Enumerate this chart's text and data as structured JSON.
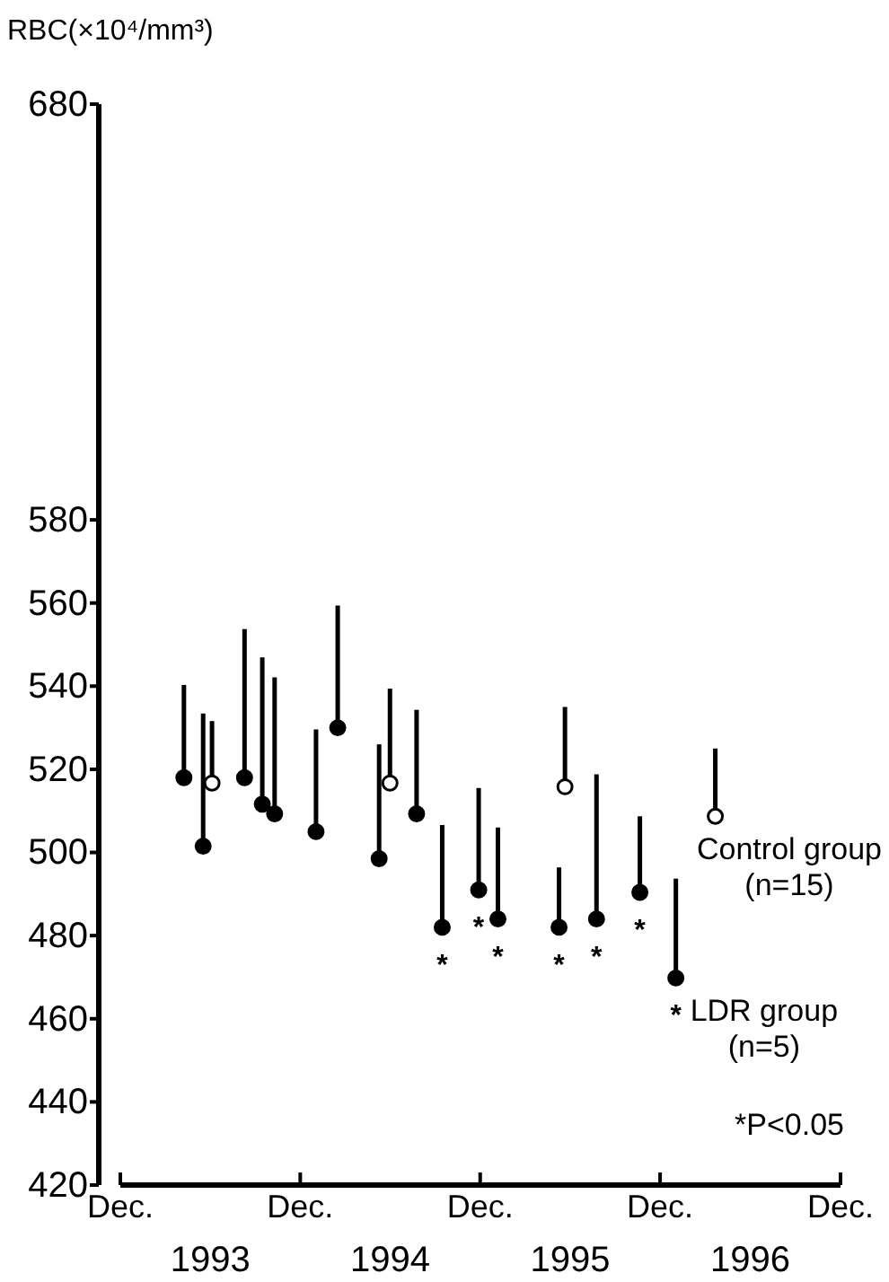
{
  "chart_data": {
    "type": "scatter",
    "ylabel": "RBC(×10⁴/mm³)",
    "xlim": [
      "1992-12-01",
      "1996-12-01"
    ],
    "xticks": [
      {
        "value": "1992-12-01",
        "label": "Dec."
      },
      {
        "value": "1993-12-01",
        "label": "Dec."
      },
      {
        "value": "1994-12-01",
        "label": "Dec."
      },
      {
        "value": "1995-12-01",
        "label": "Dec."
      },
      {
        "value": "1996-12-01",
        "label": "Dec."
      }
    ],
    "ylim": [
      420,
      680
    ],
    "yticks": [
      420,
      440,
      460,
      480,
      500,
      520,
      540,
      560,
      580,
      680
    ],
    "grid": false,
    "legend": false,
    "marker": "circle",
    "series": [
      {
        "name": "LDR group (n=5)",
        "color": "#000000",
        "x": [
          "1993-04-09",
          "1993-05-18",
          "1993-08-10",
          "1993-09-15",
          "1993-10-10",
          "1994-01-02",
          "1994-02-15",
          "1994-05-10",
          "1994-07-25",
          "1994-09-15",
          "1994-11-28",
          "1995-01-06",
          "1995-05-10",
          "1995-07-25",
          "1995-10-21",
          "1996-01-02"
        ],
        "values": [
          518,
          501.5,
          518,
          511.6,
          509.3,
          505,
          530,
          498.5,
          509.3,
          482,
          491,
          484,
          482,
          484,
          490.4,
          469.8
        ],
        "errors": [
          [
            518,
            540.3
          ],
          [
            501.5,
            533.4
          ],
          [
            518,
            553.7
          ],
          [
            511.6,
            546.9
          ],
          [
            509.3,
            542.1
          ],
          [
            505,
            529.6
          ],
          [
            530,
            559.4
          ],
          [
            498.5,
            526
          ],
          [
            509.3,
            534.3
          ],
          [
            482,
            506.6
          ],
          [
            491,
            515.5
          ],
          [
            484,
            506
          ],
          [
            482,
            496.4
          ],
          [
            484,
            518.8
          ],
          [
            490.4,
            508.7
          ],
          [
            469.8,
            493.7
          ]
        ]
      },
      {
        "name": "Control group (n=15)",
        "color": "#ffffff",
        "x": [
          "1993-06-05",
          "1994-06-01",
          "1995-05-22",
          "1996-03-22"
        ],
        "values": [
          516.7,
          516.7,
          515.8,
          508.7
        ],
        "errors": [
          [
            516.7,
            531.6
          ],
          [
            516.7,
            539.4
          ],
          [
            515.8,
            535
          ],
          [
            508.7,
            525
          ]
        ]
      }
    ],
    "annotations": [
      {
        "text": "*",
        "x": "1994-09-15",
        "y": 482
      },
      {
        "text": "*",
        "x": "1994-11-28",
        "y": 491
      },
      {
        "text": "*",
        "x": "1995-01-06",
        "y": 484
      },
      {
        "text": "*",
        "x": "1995-05-10",
        "y": 482
      },
      {
        "text": "*",
        "x": "1995-07-25",
        "y": 484
      },
      {
        "text": "*",
        "x": "1995-10-21",
        "y": 490.4
      },
      {
        "text": "*",
        "x": "1996-01-02",
        "y": 469.8
      },
      "1993",
      "1994",
      "1995",
      "1996",
      "*P<0.05"
    ]
  }
}
